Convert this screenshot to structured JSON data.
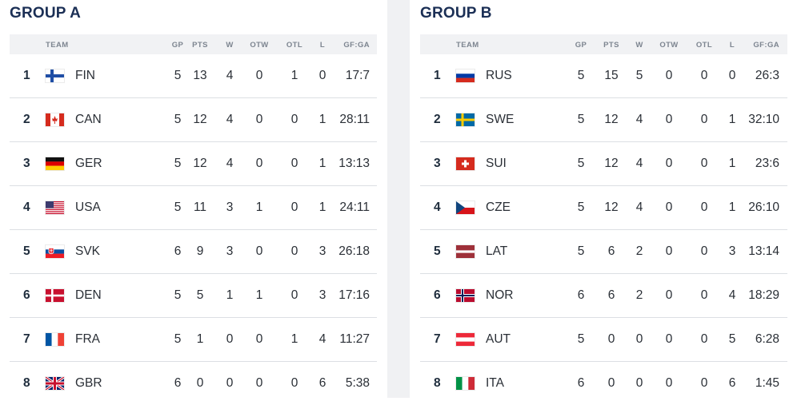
{
  "groups": [
    {
      "title": "GROUP A",
      "headers": {
        "team": "TEAM",
        "gp": "GP",
        "pts": "PTS",
        "w": "W",
        "otw": "OTW",
        "otl": "OTL",
        "l": "L",
        "gfga": "GF:GA"
      },
      "rows": [
        {
          "rank": "1",
          "flag": "fin-flag-icon",
          "team": "FIN",
          "gp": "5",
          "pts": "13",
          "w": "4",
          "otw": "0",
          "otl": "1",
          "l": "0",
          "gfga": "17:7"
        },
        {
          "rank": "2",
          "flag": "can-flag-icon",
          "team": "CAN",
          "gp": "5",
          "pts": "12",
          "w": "4",
          "otw": "0",
          "otl": "0",
          "l": "1",
          "gfga": "28:11"
        },
        {
          "rank": "3",
          "flag": "ger-flag-icon",
          "team": "GER",
          "gp": "5",
          "pts": "12",
          "w": "4",
          "otw": "0",
          "otl": "0",
          "l": "1",
          "gfga": "13:13"
        },
        {
          "rank": "4",
          "flag": "usa-flag-icon",
          "team": "USA",
          "gp": "5",
          "pts": "11",
          "w": "3",
          "otw": "1",
          "otl": "0",
          "l": "1",
          "gfga": "24:11"
        },
        {
          "rank": "5",
          "flag": "svk-flag-icon",
          "team": "SVK",
          "gp": "6",
          "pts": "9",
          "w": "3",
          "otw": "0",
          "otl": "0",
          "l": "3",
          "gfga": "26:18"
        },
        {
          "rank": "6",
          "flag": "den-flag-icon",
          "team": "DEN",
          "gp": "5",
          "pts": "5",
          "w": "1",
          "otw": "1",
          "otl": "0",
          "l": "3",
          "gfga": "17:16"
        },
        {
          "rank": "7",
          "flag": "fra-flag-icon",
          "team": "FRA",
          "gp": "5",
          "pts": "1",
          "w": "0",
          "otw": "0",
          "otl": "1",
          "l": "4",
          "gfga": "11:27"
        },
        {
          "rank": "8",
          "flag": "gbr-flag-icon",
          "team": "GBR",
          "gp": "6",
          "pts": "0",
          "w": "0",
          "otw": "0",
          "otl": "0",
          "l": "6",
          "gfga": "5:38"
        }
      ]
    },
    {
      "title": "GROUP B",
      "headers": {
        "team": "TEAM",
        "gp": "GP",
        "pts": "PTS",
        "w": "W",
        "otw": "OTW",
        "otl": "OTL",
        "l": "L",
        "gfga": "GF:GA"
      },
      "rows": [
        {
          "rank": "1",
          "flag": "rus-flag-icon",
          "team": "RUS",
          "gp": "5",
          "pts": "15",
          "w": "5",
          "otw": "0",
          "otl": "0",
          "l": "0",
          "gfga": "26:3"
        },
        {
          "rank": "2",
          "flag": "swe-flag-icon",
          "team": "SWE",
          "gp": "5",
          "pts": "12",
          "w": "4",
          "otw": "0",
          "otl": "0",
          "l": "1",
          "gfga": "32:10"
        },
        {
          "rank": "3",
          "flag": "sui-flag-icon",
          "team": "SUI",
          "gp": "5",
          "pts": "12",
          "w": "4",
          "otw": "0",
          "otl": "0",
          "l": "1",
          "gfga": "23:6"
        },
        {
          "rank": "4",
          "flag": "cze-flag-icon",
          "team": "CZE",
          "gp": "5",
          "pts": "12",
          "w": "4",
          "otw": "0",
          "otl": "0",
          "l": "1",
          "gfga": "26:10"
        },
        {
          "rank": "5",
          "flag": "lat-flag-icon",
          "team": "LAT",
          "gp": "5",
          "pts": "6",
          "w": "2",
          "otw": "0",
          "otl": "0",
          "l": "3",
          "gfga": "13:14"
        },
        {
          "rank": "6",
          "flag": "nor-flag-icon",
          "team": "NOR",
          "gp": "6",
          "pts": "6",
          "w": "2",
          "otw": "0",
          "otl": "0",
          "l": "4",
          "gfga": "18:29"
        },
        {
          "rank": "7",
          "flag": "aut-flag-icon",
          "team": "AUT",
          "gp": "5",
          "pts": "0",
          "w": "0",
          "otw": "0",
          "otl": "0",
          "l": "5",
          "gfga": "6:28"
        },
        {
          "rank": "8",
          "flag": "ita-flag-icon",
          "team": "ITA",
          "gp": "6",
          "pts": "0",
          "w": "0",
          "otw": "0",
          "otl": "0",
          "l": "6",
          "gfga": "1:45"
        }
      ]
    }
  ],
  "colors": {
    "title": "#1b2f55",
    "header_bg": "#f1f2f4",
    "divider_bg": "#f0f1f3",
    "row_border": "#dcdfe3"
  }
}
